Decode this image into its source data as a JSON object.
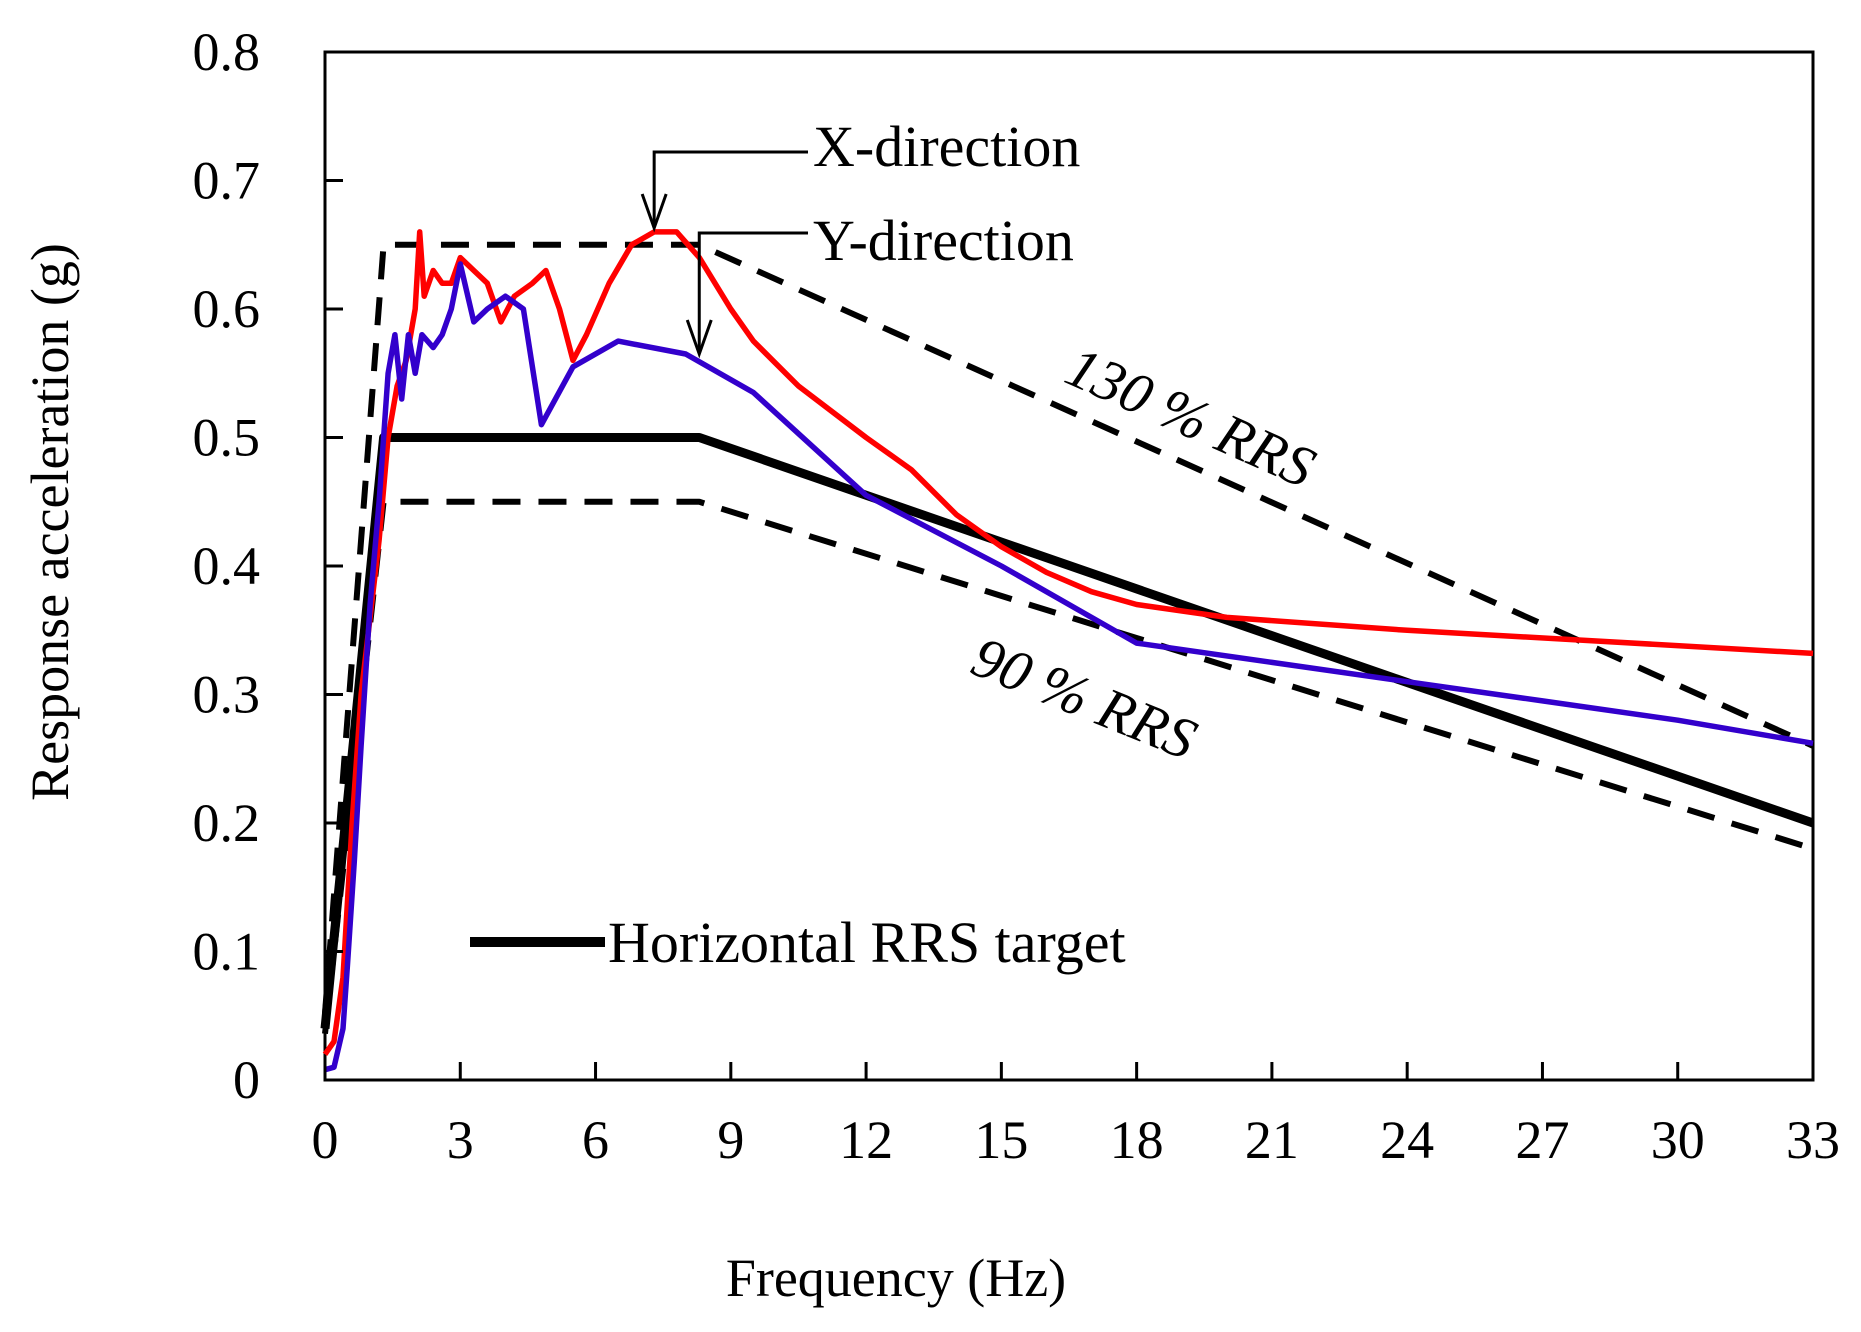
{
  "chart_data": {
    "type": "line",
    "title": "",
    "xlabel": "Frequency (Hz)",
    "ylabel": "Response acceleration (g)",
    "xlim": [
      0,
      33
    ],
    "ylim": [
      0,
      0.8
    ],
    "x_ticks": [
      0,
      3,
      6,
      9,
      12,
      15,
      18,
      21,
      24,
      27,
      30,
      33
    ],
    "x_tick_labels": [
      "0",
      "3",
      "6",
      "9",
      "12",
      "15",
      "18",
      "21",
      "24",
      "27",
      "30",
      "33"
    ],
    "y_ticks": [
      0,
      0.1,
      0.2,
      0.3,
      0.4,
      0.5,
      0.6,
      0.7,
      0.8
    ],
    "y_tick_labels": [
      "0",
      "0.1",
      "0.2",
      "0.3",
      "0.4",
      "0.5",
      "0.6",
      "0.7",
      "0.8"
    ],
    "grid": false,
    "series": [
      {
        "name": "Horizontal RRS target",
        "color": "#000000",
        "style": "solid-thick",
        "points": [
          [
            0,
            0.04
          ],
          [
            1.3,
            0.5
          ],
          [
            8.3,
            0.5
          ],
          [
            33,
            0.2
          ]
        ]
      },
      {
        "name": "130 % RRS",
        "color": "#000000",
        "style": "dashed",
        "points": [
          [
            0,
            0.052
          ],
          [
            1.3,
            0.65
          ],
          [
            8.3,
            0.65
          ],
          [
            33,
            0.26
          ]
        ]
      },
      {
        "name": "90 % RRS",
        "color": "#000000",
        "style": "dashed",
        "points": [
          [
            0,
            0.036
          ],
          [
            1.3,
            0.45
          ],
          [
            8.3,
            0.45
          ],
          [
            33,
            0.18
          ]
        ]
      },
      {
        "name": "X-direction",
        "color": "#ff0000",
        "style": "solid",
        "points": [
          [
            0,
            0.02
          ],
          [
            0.2,
            0.03
          ],
          [
            0.4,
            0.08
          ],
          [
            0.6,
            0.2
          ],
          [
            0.8,
            0.3
          ],
          [
            1.0,
            0.36
          ],
          [
            1.2,
            0.42
          ],
          [
            1.4,
            0.5
          ],
          [
            1.6,
            0.54
          ],
          [
            1.8,
            0.56
          ],
          [
            2.0,
            0.6
          ],
          [
            2.1,
            0.66
          ],
          [
            2.2,
            0.61
          ],
          [
            2.4,
            0.63
          ],
          [
            2.6,
            0.62
          ],
          [
            2.8,
            0.62
          ],
          [
            3.0,
            0.64
          ],
          [
            3.3,
            0.63
          ],
          [
            3.6,
            0.62
          ],
          [
            3.9,
            0.59
          ],
          [
            4.2,
            0.61
          ],
          [
            4.6,
            0.62
          ],
          [
            4.9,
            0.63
          ],
          [
            5.2,
            0.6
          ],
          [
            5.5,
            0.56
          ],
          [
            5.8,
            0.58
          ],
          [
            6.3,
            0.62
          ],
          [
            6.8,
            0.65
          ],
          [
            7.3,
            0.66
          ],
          [
            7.8,
            0.66
          ],
          [
            8.3,
            0.64
          ],
          [
            9.0,
            0.6
          ],
          [
            9.5,
            0.575
          ],
          [
            10.5,
            0.54
          ],
          [
            12.0,
            0.5
          ],
          [
            13.0,
            0.475
          ],
          [
            14.0,
            0.44
          ],
          [
            15.0,
            0.415
          ],
          [
            16.0,
            0.395
          ],
          [
            17.0,
            0.38
          ],
          [
            18.0,
            0.37
          ],
          [
            20.0,
            0.36
          ],
          [
            24.0,
            0.35
          ],
          [
            28.0,
            0.342
          ],
          [
            33.0,
            0.332
          ]
        ]
      },
      {
        "name": "Y-direction",
        "color": "#3300cc",
        "style": "solid",
        "points": [
          [
            0,
            0.008
          ],
          [
            0.2,
            0.01
          ],
          [
            0.4,
            0.04
          ],
          [
            0.5,
            0.09
          ],
          [
            0.65,
            0.17
          ],
          [
            0.8,
            0.26
          ],
          [
            1.0,
            0.37
          ],
          [
            1.2,
            0.45
          ],
          [
            1.4,
            0.55
          ],
          [
            1.55,
            0.58
          ],
          [
            1.7,
            0.53
          ],
          [
            1.85,
            0.58
          ],
          [
            2.0,
            0.55
          ],
          [
            2.15,
            0.58
          ],
          [
            2.4,
            0.57
          ],
          [
            2.6,
            0.58
          ],
          [
            2.8,
            0.6
          ],
          [
            3.0,
            0.635
          ],
          [
            3.3,
            0.59
          ],
          [
            3.6,
            0.6
          ],
          [
            4.0,
            0.61
          ],
          [
            4.4,
            0.6
          ],
          [
            4.8,
            0.51
          ],
          [
            5.5,
            0.555
          ],
          [
            6.5,
            0.575
          ],
          [
            8.0,
            0.565
          ],
          [
            9.5,
            0.535
          ],
          [
            12.0,
            0.455
          ],
          [
            15.0,
            0.4
          ],
          [
            18.0,
            0.34
          ],
          [
            21.0,
            0.325
          ],
          [
            24.0,
            0.31
          ],
          [
            27.0,
            0.295
          ],
          [
            30.0,
            0.28
          ],
          [
            33.0,
            0.262
          ]
        ]
      }
    ],
    "annotations": [
      {
        "text": "X-direction",
        "arrow_to": [
          7.3,
          0.663
        ]
      },
      {
        "text": "Y-direction",
        "arrow_to": [
          8.3,
          0.565
        ]
      },
      {
        "text": "130 % RRS",
        "near": [
          22.5,
          0.52
        ]
      },
      {
        "text": "90 % RRS",
        "near": [
          20.5,
          0.29
        ]
      }
    ],
    "legend": {
      "entries": [
        "Horizontal RRS target"
      ],
      "placement": "bottom-left"
    }
  }
}
